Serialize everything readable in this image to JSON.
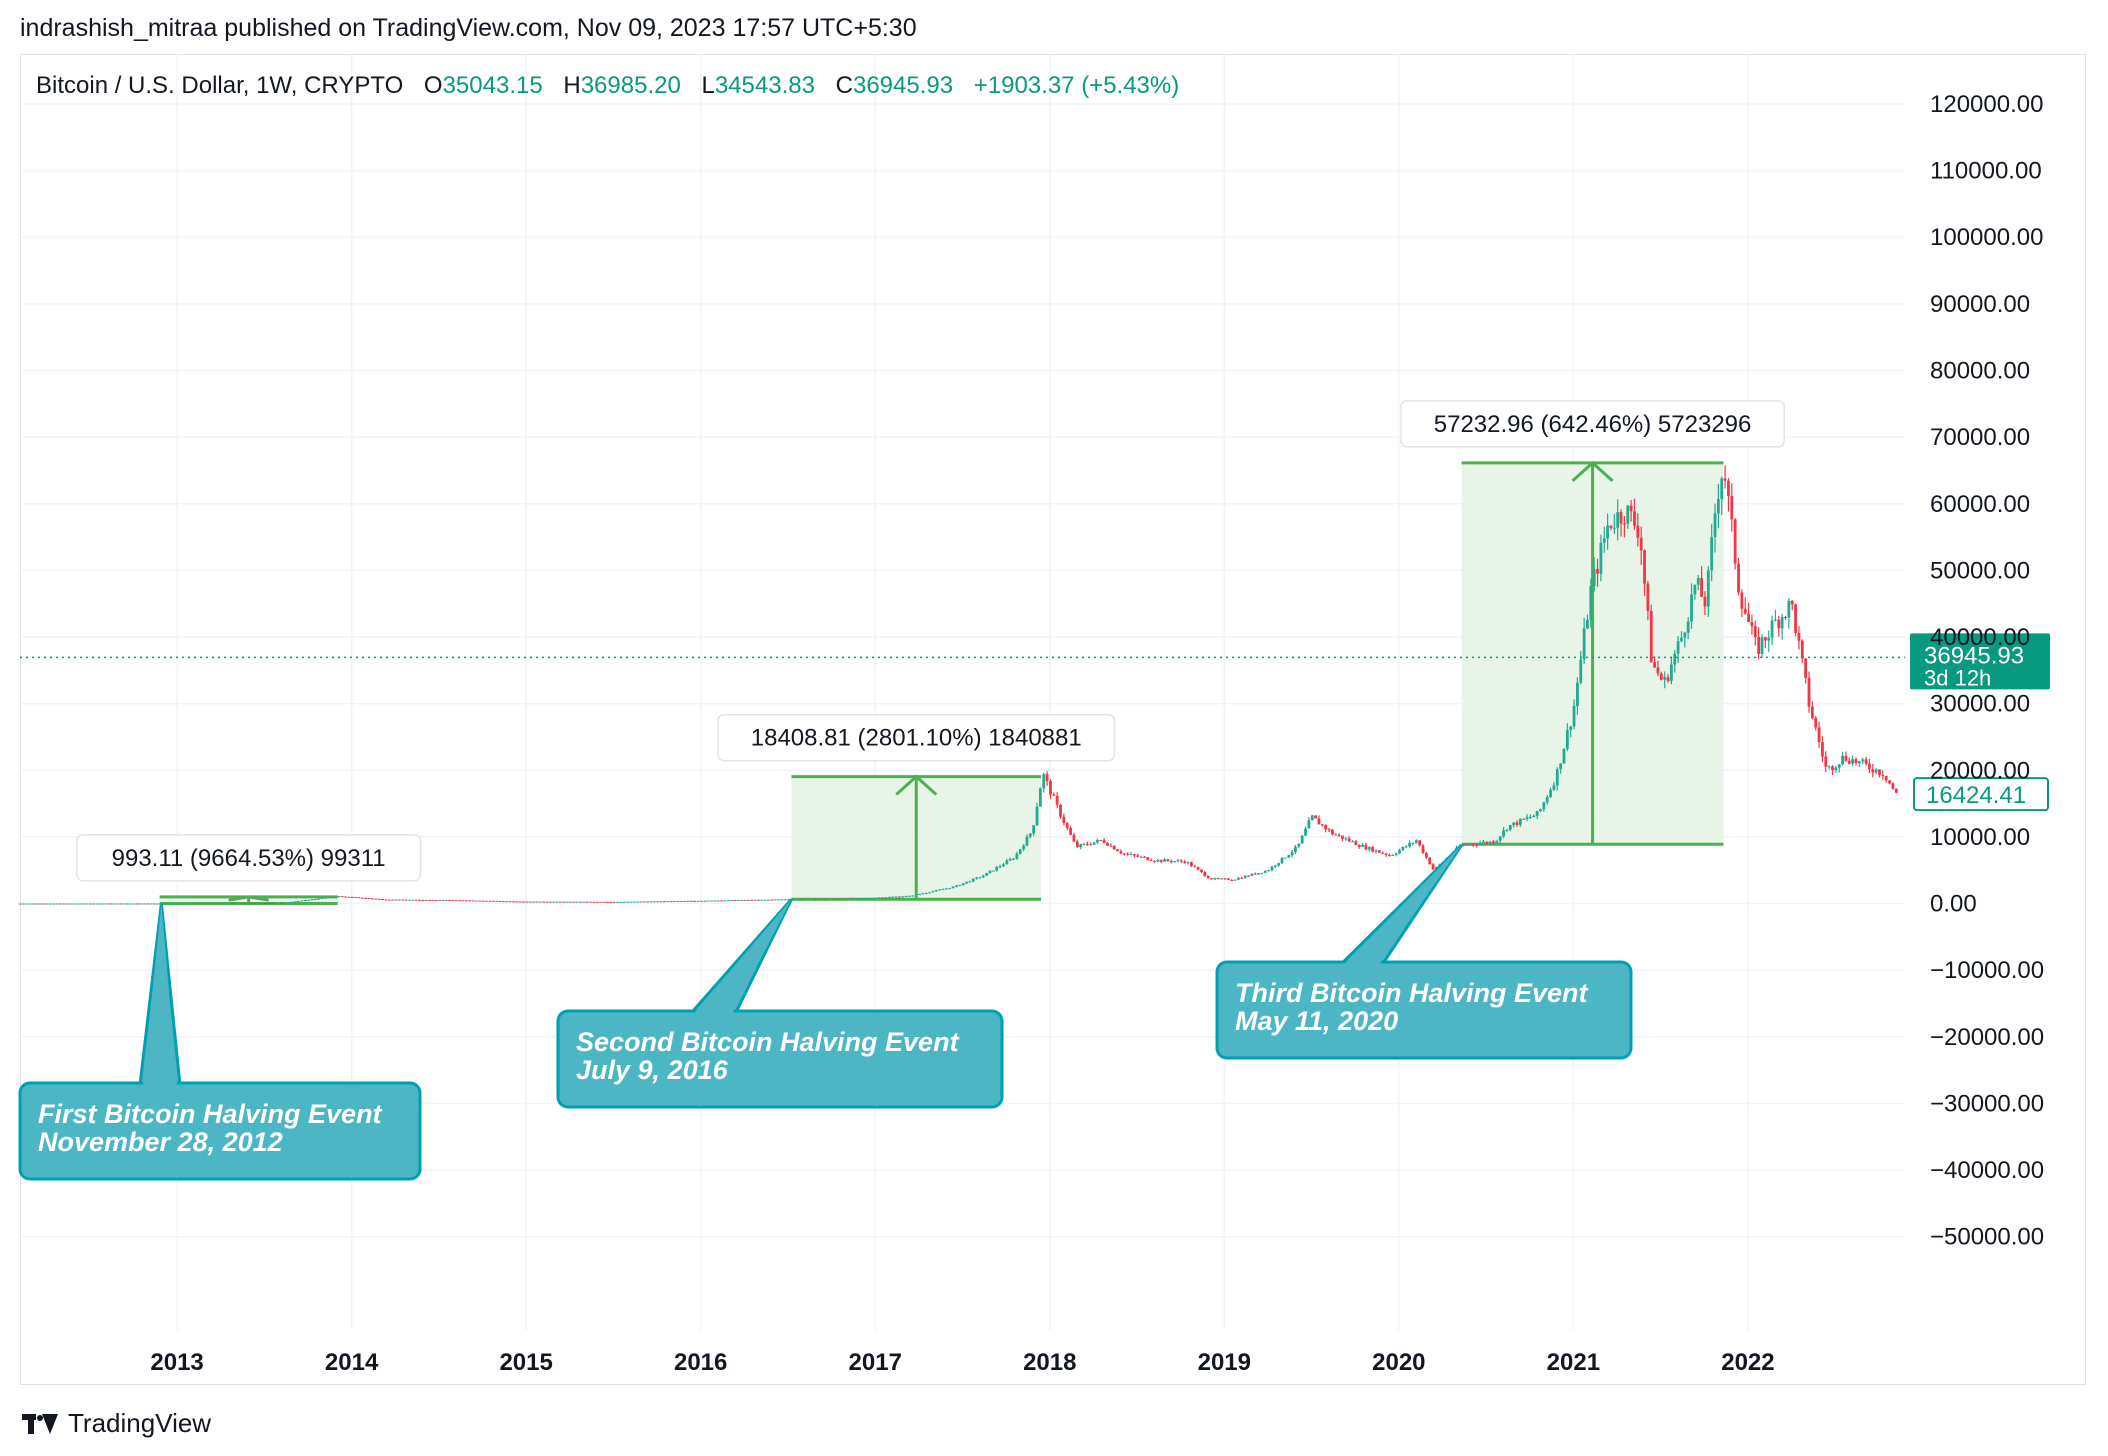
{
  "header": {
    "publisher_text": "indrashish_mitraa published on TradingView.com, Nov 09, 2023 17:57 UTC+5:30"
  },
  "legend": {
    "symbol": "Bitcoin / U.S. Dollar, 1W, CRYPTO",
    "open_key": "O",
    "open": "35043.15",
    "high_key": "H",
    "high": "36985.20",
    "low_key": "L",
    "low": "34543.83",
    "close_key": "C",
    "close": "36945.93",
    "change": "+1903.37 (+5.43%)"
  },
  "footer": {
    "brand": "TradingView",
    "logo_icon": "tradingview-logo-icon"
  },
  "colors": {
    "up": "#089981",
    "down": "#f23645",
    "candle_up": "#22ab94",
    "measure_line": "#4caf50",
    "measure_fill": "#e6f3e4",
    "callout_fill": "#4db6c4",
    "callout_border": "#00a0b0",
    "grid": "#f0f3fa",
    "axis_text": "#131722",
    "price_line": "#089981"
  },
  "chart_data": {
    "type": "candlestick",
    "interval": "1W",
    "xlim": [
      2012.1,
      2022.9
    ],
    "ylim": [
      -64000,
      127500
    ],
    "x_ticks": [
      "2013",
      "2014",
      "2015",
      "2016",
      "2017",
      "2018",
      "2019",
      "2020",
      "2021",
      "2022"
    ],
    "y_ticks": [
      120000,
      110000,
      100000,
      90000,
      80000,
      70000,
      60000,
      50000,
      40000,
      30000,
      20000,
      10000,
      0,
      -10000,
      -20000,
      -30000,
      -40000,
      -50000
    ],
    "y_tick_labels": [
      "120000.00",
      "110000.00",
      "100000.00",
      "90000.00",
      "80000.00",
      "70000.00",
      "60000.00",
      "50000.00",
      "40000.00",
      "30000.00",
      "20000.00",
      "10000.00",
      "0.00",
      "−10000.00",
      "−20000.00",
      "−30000.00",
      "−40000.00",
      "−50000.00"
    ],
    "grid": true,
    "price_series": [
      [
        2012.1,
        5
      ],
      [
        2012.9,
        12
      ],
      [
        2013.3,
        120
      ],
      [
        2013.6,
        90
      ],
      [
        2013.92,
        1100
      ],
      [
        2014.2,
        600
      ],
      [
        2014.6,
        500
      ],
      [
        2015.0,
        300
      ],
      [
        2015.5,
        250
      ],
      [
        2016.0,
        420
      ],
      [
        2016.52,
        650
      ],
      [
        2016.9,
        750
      ],
      [
        2017.2,
        1150
      ],
      [
        2017.45,
        2500
      ],
      [
        2017.62,
        4200
      ],
      [
        2017.8,
        7000
      ],
      [
        2017.9,
        11000
      ],
      [
        2017.96,
        19500
      ],
      [
        2018.05,
        14000
      ],
      [
        2018.15,
        8500
      ],
      [
        2018.3,
        9500
      ],
      [
        2018.42,
        7500
      ],
      [
        2018.6,
        6500
      ],
      [
        2018.78,
        6300
      ],
      [
        2018.92,
        3700
      ],
      [
        2019.05,
        3600
      ],
      [
        2019.25,
        5000
      ],
      [
        2019.42,
        8500
      ],
      [
        2019.5,
        13000
      ],
      [
        2019.62,
        10500
      ],
      [
        2019.8,
        8500
      ],
      [
        2019.95,
        7200
      ],
      [
        2020.1,
        9500
      ],
      [
        2020.2,
        5000
      ],
      [
        2020.36,
        8800
      ],
      [
        2020.55,
        9300
      ],
      [
        2020.62,
        11500
      ],
      [
        2020.8,
        13500
      ],
      [
        2020.9,
        19000
      ],
      [
        2021.0,
        29000
      ],
      [
        2021.05,
        38000
      ],
      [
        2021.1,
        47000
      ],
      [
        2021.2,
        57000
      ],
      [
        2021.3,
        59000
      ],
      [
        2021.38,
        56000
      ],
      [
        2021.45,
        36000
      ],
      [
        2021.52,
        33000
      ],
      [
        2021.62,
        40000
      ],
      [
        2021.7,
        48000
      ],
      [
        2021.76,
        45000
      ],
      [
        2021.82,
        61000
      ],
      [
        2021.86,
        66000
      ],
      [
        2021.95,
        47000
      ],
      [
        2022.05,
        38000
      ],
      [
        2022.15,
        42000
      ],
      [
        2022.25,
        45000
      ],
      [
        2022.35,
        30000
      ],
      [
        2022.45,
        20000
      ],
      [
        2022.55,
        22000
      ],
      [
        2022.65,
        21000
      ],
      [
        2022.78,
        19500
      ],
      [
        2022.85,
        16400
      ]
    ],
    "current_price": 36945.93,
    "current_price_label": "36945.93",
    "countdown_label": "3d 12h",
    "last_price_label": "16424.41",
    "last_price": 16424.41,
    "measurements": [
      {
        "x1": 2012.9,
        "x2": 2013.92,
        "from": 10,
        "to": 1003,
        "label": "993.11 (9664.53%) 99311"
      },
      {
        "x1": 2016.52,
        "x2": 2017.95,
        "from": 650,
        "to": 19059,
        "label": "18408.81 (2801.10%) 1840881"
      },
      {
        "x1": 2020.36,
        "x2": 2021.86,
        "from": 8900,
        "to": 66133,
        "label": "57232.96 (642.46%) 5723296"
      }
    ],
    "annotations": [
      {
        "title": "First Bitcoin Halving Event",
        "date": "November 28, 2012",
        "x": 2012.91,
        "y": 10
      },
      {
        "title": "Second Bitcoin Halving Event",
        "date": "July 9, 2016",
        "x": 2016.52,
        "y": 650
      },
      {
        "title": "Third Bitcoin Halving Event",
        "date": "May 11, 2020",
        "x": 2020.36,
        "y": 8800
      }
    ]
  }
}
